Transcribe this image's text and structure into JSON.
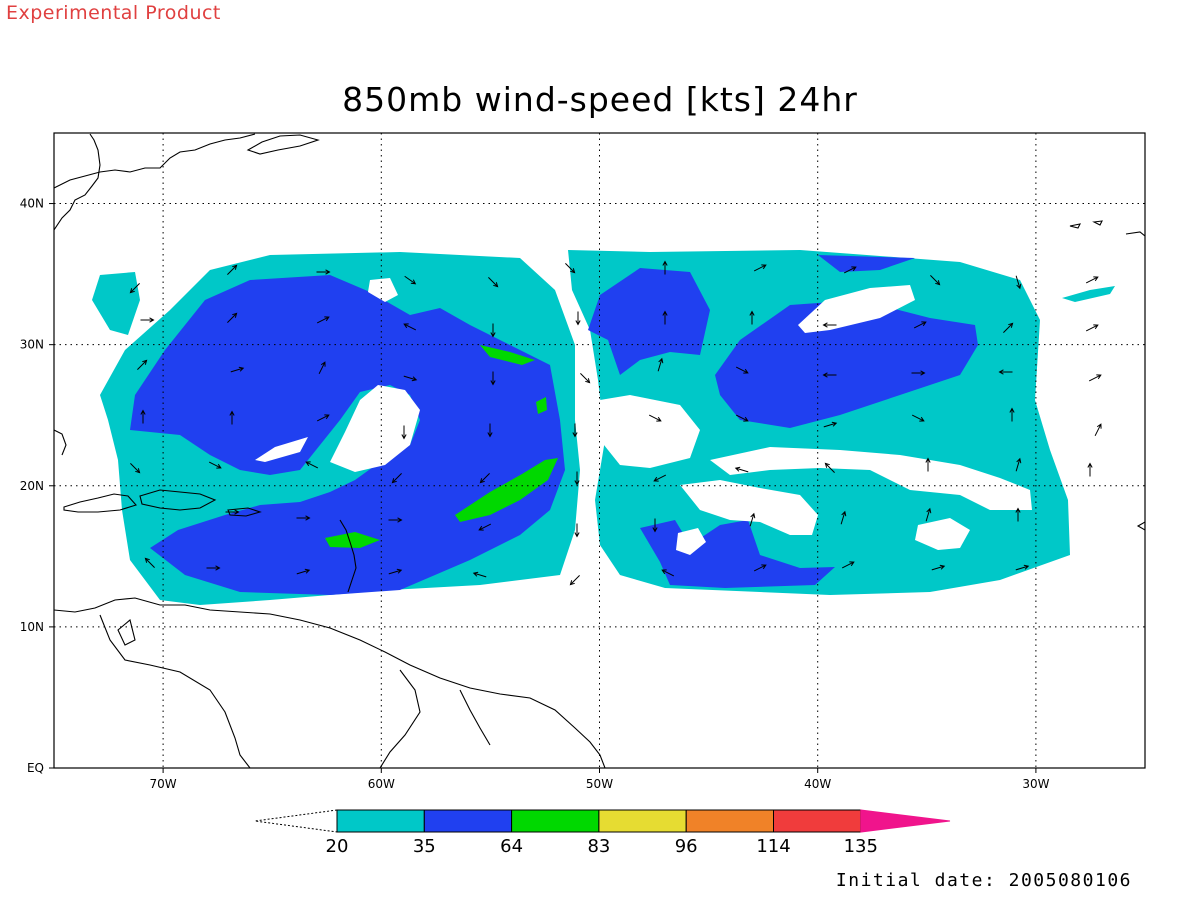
{
  "header": {
    "experimental_label": "Experimental Product"
  },
  "title": "850mb wind-speed [kts] 24hr",
  "footer": {
    "initial_date": "Initial date: 2005080106"
  },
  "colors": {
    "experimental_label": "#e04040",
    "c20": "#00c8c8",
    "c35": "#2040f0",
    "c64": "#00d800",
    "c83": "#e6dc32",
    "c96": "#f08228",
    "c114": "#f03c3c",
    "c135": "#f0148c",
    "land_outline": "#000000"
  },
  "map": {
    "lon_range": [
      -75,
      -25
    ],
    "lat_range": [
      0,
      45
    ],
    "lon_ticks": [
      {
        "value": -70,
        "label": "70W"
      },
      {
        "value": -60,
        "label": "60W"
      },
      {
        "value": -50,
        "label": "50W"
      },
      {
        "value": -40,
        "label": "40W"
      },
      {
        "value": -30,
        "label": "30W"
      }
    ],
    "lat_ticks": [
      {
        "value": 0,
        "label": "EQ"
      },
      {
        "value": 10,
        "label": "10N"
      },
      {
        "value": 20,
        "label": "20N"
      },
      {
        "value": 30,
        "label": "30N"
      },
      {
        "value": 40,
        "label": "40N"
      }
    ],
    "grid": "dotted"
  },
  "colorbar": {
    "thresholds": [
      "20",
      "35",
      "64",
      "83",
      "96",
      "114",
      "135"
    ],
    "unit": "kts"
  }
}
